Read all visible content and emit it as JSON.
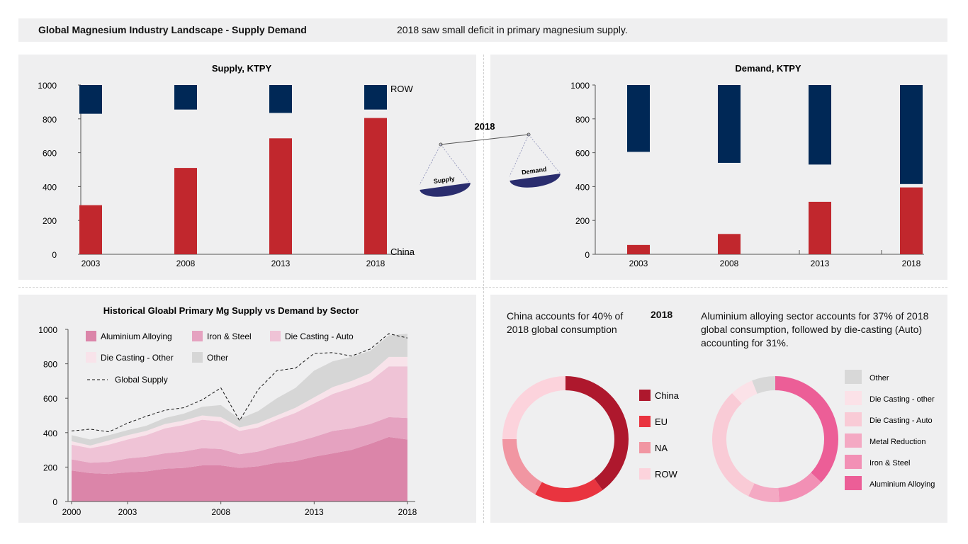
{
  "header": {
    "title": "Global Magnesium Industry Landscape - Supply Demand",
    "note": "2018 saw small deficit in primary magnesium supply."
  },
  "scale": {
    "year": "2018",
    "left_label": "Supply",
    "right_label": "Demand"
  },
  "chart_data": [
    {
      "type": "bar",
      "title": "Supply, KTPY",
      "categories": [
        "2003",
        "2008",
        "2013",
        "2018"
      ],
      "series": [
        {
          "name": "China",
          "values": [
            290,
            510,
            685,
            805
          ]
        },
        {
          "name": "ROW",
          "values": [
            170,
            145,
            165,
            145
          ]
        }
      ],
      "ylim": [
        0,
        1000
      ],
      "yticks": [
        0,
        200,
        400,
        600,
        800,
        1000
      ],
      "colors": {
        "China": "#c1272d",
        "ROW": "#002856"
      },
      "legend_placement": "right"
    },
    {
      "type": "bar",
      "title": "Demand, KTPY",
      "categories": [
        "2003",
        "2008",
        "2013",
        "2018"
      ],
      "series": [
        {
          "values": [
            55,
            120,
            310,
            395
          ]
        },
        {
          "values": [
            395,
            460,
            470,
            585
          ]
        }
      ],
      "ylim": [
        0,
        1000
      ],
      "yticks": [
        0,
        200,
        400,
        600,
        800,
        1000
      ],
      "colors": [
        "#c1272d",
        "#002856"
      ]
    },
    {
      "type": "area",
      "title": "Historical Gloabl Primary Mg Supply vs Demand by Sector",
      "x": [
        2000,
        2001,
        2002,
        2003,
        2004,
        2005,
        2006,
        2007,
        2008,
        2009,
        2010,
        2011,
        2012,
        2013,
        2014,
        2015,
        2016,
        2017,
        2018
      ],
      "xticks": [
        2000,
        2003,
        2008,
        2013,
        2018
      ],
      "ylim": [
        0,
        1000
      ],
      "yticks": [
        0,
        200,
        400,
        600,
        800,
        1000
      ],
      "series": [
        {
          "name": "Aluminium Alloying",
          "color": "#db85a9",
          "values": [
            180,
            165,
            160,
            170,
            175,
            190,
            195,
            210,
            210,
            195,
            205,
            225,
            235,
            260,
            280,
            300,
            335,
            375,
            360
          ]
        },
        {
          "name": "Iron & Steel",
          "color": "#e5a2c0",
          "values": [
            65,
            60,
            70,
            80,
            85,
            90,
            95,
            100,
            95,
            80,
            85,
            95,
            110,
            115,
            130,
            125,
            115,
            115,
            125
          ]
        },
        {
          "name": "Die Casting - Auto",
          "color": "#efc3d6",
          "values": [
            85,
            85,
            100,
            110,
            125,
            145,
            155,
            165,
            160,
            135,
            140,
            155,
            170,
            195,
            215,
            235,
            250,
            295,
            300
          ]
        },
        {
          "name": "Die Casting - Other",
          "color": "#f8e3ea",
          "values": [
            20,
            15,
            25,
            25,
            25,
            25,
            25,
            25,
            25,
            20,
            25,
            25,
            30,
            35,
            40,
            40,
            45,
            55,
            55
          ]
        },
        {
          "name": "Other",
          "color": "#d6d6d6",
          "values": [
            35,
            35,
            30,
            30,
            30,
            35,
            40,
            50,
            70,
            50,
            70,
            100,
            115,
            155,
            150,
            140,
            130,
            125,
            135
          ]
        }
      ],
      "supply_line": {
        "name": "Global Supply",
        "values": [
          410,
          420,
          405,
          455,
          495,
          530,
          545,
          590,
          660,
          470,
          650,
          760,
          775,
          860,
          865,
          845,
          885,
          975,
          950
        ]
      }
    },
    {
      "type": "pie",
      "title": "2018",
      "note": "China accounts for 40% of 2018 global consumption",
      "labels": [
        "China",
        "EU",
        "NA",
        "ROW"
      ],
      "values": [
        40,
        18,
        17,
        25
      ],
      "colors": [
        "#ae182d",
        "#e9343f",
        "#f196a2",
        "#fcd3dc"
      ],
      "legend_placement": "right"
    },
    {
      "type": "pie",
      "note": "Aluminium alloying sector accounts for 37% of 2018 global consumption, followed by die-casting (Auto) accounting for 31%.",
      "labels": [
        "Aluminium Alloying",
        "Iron & Steel",
        "Metal Reduction",
        "Die Casting - Auto",
        "Die Casting - other",
        "Other"
      ],
      "legend_order": [
        "Other",
        "Die Casting - other",
        "Die Casting - Auto",
        "Metal Reduction",
        "Iron & Steel",
        "Aluminium Alloying"
      ],
      "values": [
        37,
        12,
        8,
        31,
        6,
        6
      ],
      "colors": [
        "#ec5e97",
        "#f290b5",
        "#f4a9c3",
        "#f9cbd6",
        "#fbe2e8",
        "#d8d8d8"
      ],
      "legend_placement": "right"
    }
  ]
}
